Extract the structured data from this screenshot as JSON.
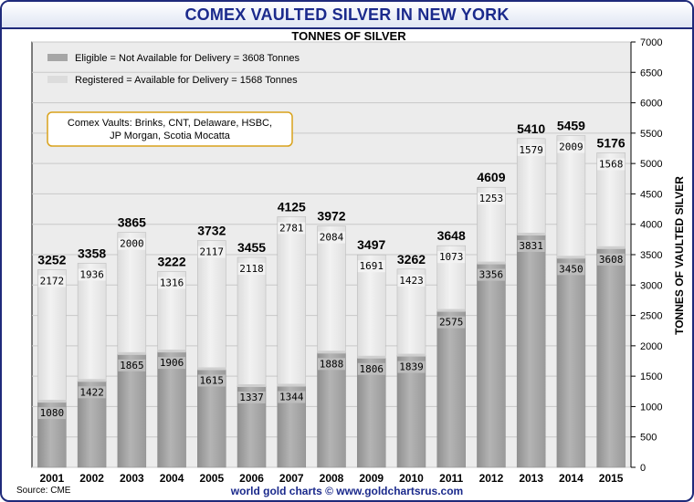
{
  "header": {
    "title": "COMEX VAULTED SILVER IN NEW YORK",
    "subtitle": "TONNES OF SILVER"
  },
  "footer": {
    "credit": "world gold charts © www.goldchartsrus.com",
    "source": "Source: CME"
  },
  "annotation": "Comex Vaults: Brinks, CNT, Delaware, HSBC,\nJP Morgan, Scotia Mocatta",
  "colors": {
    "eligible": "#a6a6a6",
    "registered": "#e6e6e6",
    "title": "#1b2a8c",
    "annotation_border": "#d9a21b"
  },
  "chart_data": {
    "type": "bar",
    "stacked": true,
    "categories": [
      "2001",
      "2002",
      "2003",
      "2004",
      "2005",
      "2006",
      "2007",
      "2008",
      "2009",
      "2010",
      "2011",
      "2012",
      "2013",
      "2014",
      "2015"
    ],
    "series": [
      {
        "name": "Eligible = Not Available for Delivery = 3608 Tonnes",
        "values": [
          1080,
          1422,
          1865,
          1906,
          1615,
          1337,
          1344,
          1888,
          1806,
          1839,
          2575,
          3356,
          3831,
          3450,
          3608
        ]
      },
      {
        "name": "Registered = Available for Delivery = 1568 Tonnes",
        "values": [
          2172,
          1936,
          2000,
          1316,
          2117,
          2118,
          2781,
          2084,
          1691,
          1423,
          1073,
          1253,
          1579,
          2009,
          1568
        ]
      }
    ],
    "totals": [
      3252,
      3358,
      3865,
      3222,
      3732,
      3455,
      4125,
      3972,
      3497,
      3262,
      3648,
      4609,
      5410,
      5459,
      5176
    ],
    "y_ticks": [
      "0",
      "500",
      "1000",
      "1500",
      "2000",
      "2500",
      "3000",
      "3500",
      "4000",
      "4500",
      "5000",
      "5500",
      "6000",
      "6500",
      "7000"
    ],
    "ylim": [
      0,
      7000
    ],
    "ylabel": "TONNES OF VAULTED SILVER",
    "xlabel": "",
    "grid": true,
    "legend_position": "top-left"
  }
}
